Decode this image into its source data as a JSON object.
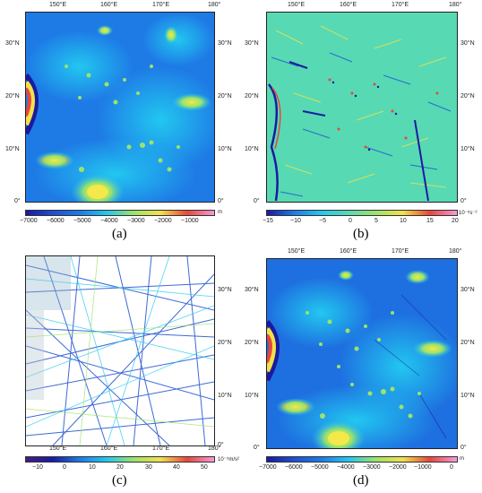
{
  "panels": [
    {
      "id": "a",
      "label": "(a)",
      "xticks": [
        "150°E",
        "160°E",
        "170°E",
        "180°"
      ],
      "yticks": [
        "30°N",
        "20°N",
        "10°N",
        "0°"
      ],
      "colorbar": {
        "ticks": [
          "−7000",
          "−6000",
          "−5000",
          "−4000",
          "−3000",
          "−2000",
          "−1000"
        ],
        "unit": "m",
        "palette": "bathy"
      }
    },
    {
      "id": "b",
      "label": "(b)",
      "xticks": [
        "150°E",
        "160°E",
        "170°E",
        "180°"
      ],
      "yticks": [
        "30°N",
        "20°N",
        "10°N",
        "0°"
      ],
      "colorbar": {
        "ticks": [
          "−15",
          "−10",
          "−5",
          "0",
          "5",
          "10",
          "15",
          "20"
        ],
        "unit": "10⁻⁸s⁻²",
        "palette": "gradient"
      }
    },
    {
      "id": "c",
      "label": "(c)",
      "xticks": [
        "150°E",
        "160°E",
        "170°E",
        "180°"
      ],
      "yticks": [
        "30°N",
        "20°N",
        "10°N",
        "0°"
      ],
      "colorbar": {
        "ticks": [
          "−10",
          "0",
          "10",
          "20",
          "30",
          "40",
          "50"
        ],
        "unit": "10⁻⁵m/s²",
        "palette": "tracks"
      }
    },
    {
      "id": "d",
      "label": "(d)",
      "xticks": [
        "150°E",
        "160°E",
        "170°E",
        "180°"
      ],
      "yticks": [
        "30°N",
        "20°N",
        "10°N",
        "0°"
      ],
      "colorbar": {
        "ticks": [
          "−7000",
          "−6000",
          "−5000",
          "−4000",
          "−3000",
          "−2000",
          "−1000",
          "0"
        ],
        "unit": "m",
        "palette": "bathy"
      }
    }
  ],
  "colors": {
    "deep": "#1a1aa0",
    "mid": "#1e7be6",
    "shallow": "#22c7f0",
    "seamount": "#9be36a",
    "peak": "#f2e14a",
    "high": "#e8463c",
    "top": "#f59ad8"
  }
}
